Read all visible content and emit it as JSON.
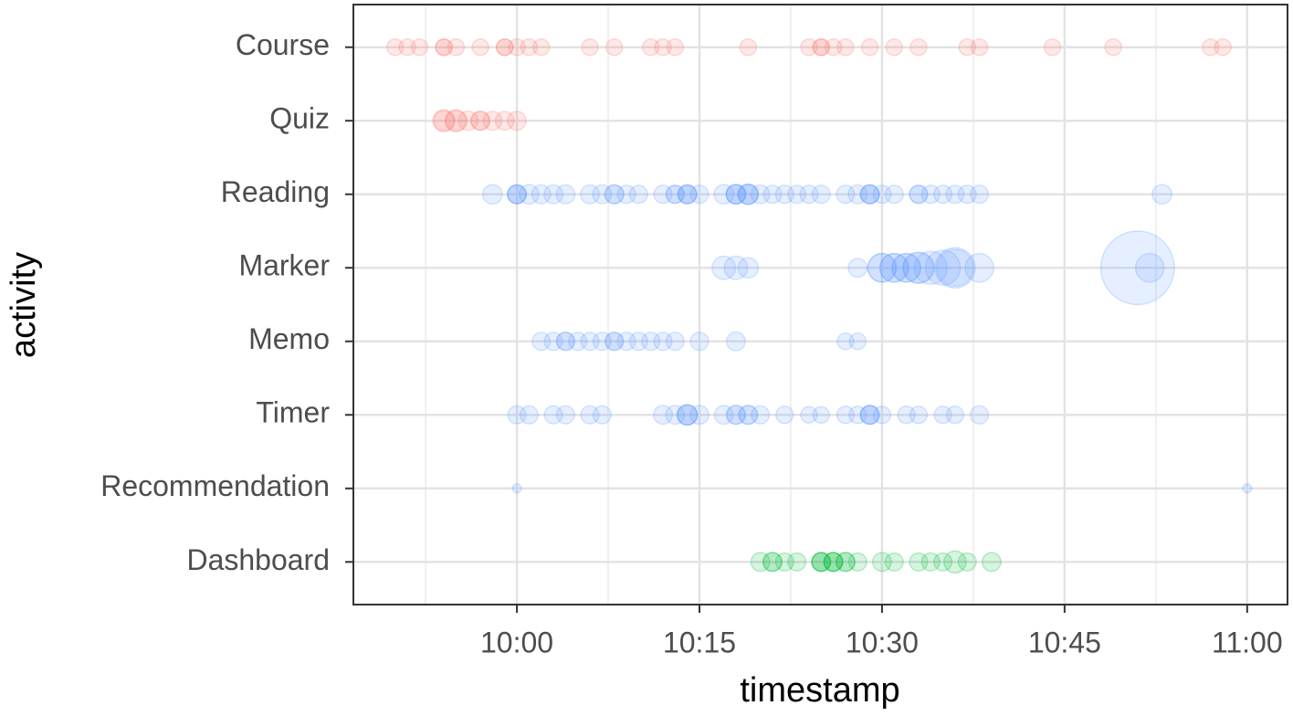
{
  "chart_data": {
    "type": "bubble",
    "x_label": "timestamp",
    "y_label": "activity",
    "xlim": [
      "09:46:34",
      "11:03:19"
    ],
    "xticks": [
      "10:00",
      "10:15",
      "10:30",
      "10:45",
      "11:00"
    ],
    "grid": true,
    "series": [
      {
        "name": "Course",
        "color": "#f8766d",
        "x": [
          "09:50",
          "09:51",
          "09:52",
          "09:54",
          "09:54",
          "09:55",
          "09:57",
          "09:59",
          "09:59",
          "10:00",
          "10:01",
          "10:02",
          "10:06",
          "10:08",
          "10:11",
          "10:12",
          "10:13",
          "10:19",
          "10:24",
          "10:25",
          "10:25",
          "10:26",
          "10:27",
          "10:29",
          "10:31",
          "10:33",
          "10:37",
          "10:38",
          "10:44",
          "10:49",
          "10:57",
          "10:58"
        ],
        "sizes": [
          1,
          1,
          1,
          1,
          1,
          1,
          1,
          1,
          1,
          1,
          1,
          1,
          1,
          1,
          1,
          1,
          1,
          1,
          1,
          1,
          1,
          1,
          1,
          1,
          1,
          1,
          1,
          1,
          1,
          1,
          1,
          1
        ]
      },
      {
        "name": "Quiz",
        "color": "#f8766d",
        "x": [
          "09:54",
          "09:54",
          "09:55",
          "09:55",
          "09:56",
          "09:57",
          "09:57",
          "09:58",
          "09:59",
          "10:00"
        ],
        "sizes": [
          1.8,
          1.5,
          1.8,
          1.5,
          1.4,
          1.3,
          1.3,
          1.3,
          1.3,
          1.3
        ]
      },
      {
        "name": "Reading",
        "color": "#619cff",
        "x": [
          "09:58",
          "10:00",
          "10:00",
          "10:00",
          "10:01",
          "10:02",
          "10:03",
          "10:04",
          "10:06",
          "10:07",
          "10:08",
          "10:08",
          "10:09",
          "10:10",
          "10:12",
          "10:13",
          "10:13",
          "10:14",
          "10:14",
          "10:14",
          "10:15",
          "10:17",
          "10:18",
          "10:18",
          "10:18",
          "10:19",
          "10:19",
          "10:19",
          "10:20",
          "10:21",
          "10:22",
          "10:23",
          "10:24",
          "10:25",
          "10:27",
          "10:28",
          "10:29",
          "10:29",
          "10:29",
          "10:30",
          "10:31",
          "10:33",
          "10:33",
          "10:34",
          "10:35",
          "10:36",
          "10:37",
          "10:38",
          "10:53"
        ],
        "sizes": [
          1.4,
          1.3,
          1.3,
          1.3,
          1.4,
          1.3,
          1.3,
          1.3,
          1.3,
          1.3,
          1.3,
          1.3,
          1.2,
          1.2,
          1.2,
          1.2,
          1.2,
          1.3,
          1.3,
          1.3,
          1.2,
          1.4,
          1.4,
          1.4,
          1.4,
          1.5,
          1.5,
          1.5,
          1.3,
          1.2,
          1.2,
          1.2,
          1.2,
          1.2,
          1.2,
          1.3,
          1.3,
          1.3,
          1.3,
          1.2,
          1.2,
          1.2,
          1.2,
          1.2,
          1.2,
          1.2,
          1.2,
          1.2,
          1.4
        ]
      },
      {
        "name": "Marker",
        "color": "#619cff",
        "x": [
          "10:17",
          "10:18",
          "10:19",
          "10:28",
          "10:30",
          "10:30",
          "10:31",
          "10:31",
          "10:32",
          "10:32",
          "10:33",
          "10:33",
          "10:34",
          "10:35",
          "10:36",
          "10:36",
          "10:38",
          "10:51",
          "10:52"
        ],
        "sizes": [
          2,
          2,
          1.5,
          1.3,
          3,
          3,
          3,
          3,
          3,
          3,
          3.5,
          3.5,
          4,
          4.5,
          6,
          5,
          3,
          20,
          3
        ]
      },
      {
        "name": "Memo",
        "color": "#619cff",
        "x": [
          "10:02",
          "10:03",
          "10:04",
          "10:04",
          "10:05",
          "10:06",
          "10:07",
          "10:08",
          "10:08",
          "10:09",
          "10:10",
          "10:11",
          "10:12",
          "10:13",
          "10:15",
          "10:18",
          "10:27",
          "10:28"
        ],
        "sizes": [
          1.2,
          1.2,
          1.2,
          1.2,
          1.2,
          1.2,
          1.2,
          1.2,
          1.2,
          1.2,
          1.2,
          1.2,
          1.2,
          1.2,
          1.2,
          1.3,
          1,
          1
        ]
      },
      {
        "name": "Timer",
        "color": "#619cff",
        "x": [
          "10:00",
          "10:01",
          "10:03",
          "10:04",
          "10:06",
          "10:07",
          "10:12",
          "10:13",
          "10:14",
          "10:14",
          "10:14",
          "10:15",
          "10:17",
          "10:18",
          "10:18",
          "10:19",
          "10:19",
          "10:20",
          "10:22",
          "10:24",
          "10:25",
          "10:27",
          "10:28",
          "10:29",
          "10:29",
          "10:29",
          "10:30",
          "10:32",
          "10:33",
          "10:35",
          "10:36",
          "10:38"
        ],
        "sizes": [
          1.2,
          1.2,
          1.2,
          1.2,
          1.2,
          1.2,
          1.3,
          1.3,
          1.5,
          1.5,
          1.5,
          1.3,
          1.3,
          1.3,
          1.3,
          1.3,
          1.3,
          1.2,
          1.1,
          1,
          1,
          1.1,
          1.1,
          1.3,
          1.3,
          1.3,
          1.1,
          1.1,
          1.1,
          1.1,
          1.1,
          1.2
        ]
      },
      {
        "name": "Recommendation",
        "color": "#619cff",
        "x": [
          "10:00",
          "11:00"
        ],
        "sizes": [
          0.3,
          0.3
        ]
      },
      {
        "name": "Dashboard",
        "color": "#00ba38",
        "x": [
          "10:20",
          "10:21",
          "10:21",
          "10:22",
          "10:23",
          "10:25",
          "10:25",
          "10:25",
          "10:26",
          "10:26",
          "10:26",
          "10:27",
          "10:27",
          "10:28",
          "10:30",
          "10:31",
          "10:33",
          "10:34",
          "10:35",
          "10:36",
          "10:37",
          "10:39"
        ],
        "sizes": [
          1.3,
          1.3,
          1.3,
          1.2,
          1.2,
          1.3,
          1.3,
          1.3,
          1.3,
          1.3,
          1.3,
          1.3,
          1.3,
          1.2,
          1.3,
          1.2,
          1.2,
          1.2,
          1.2,
          1.8,
          1.2,
          1.3
        ]
      }
    ]
  }
}
